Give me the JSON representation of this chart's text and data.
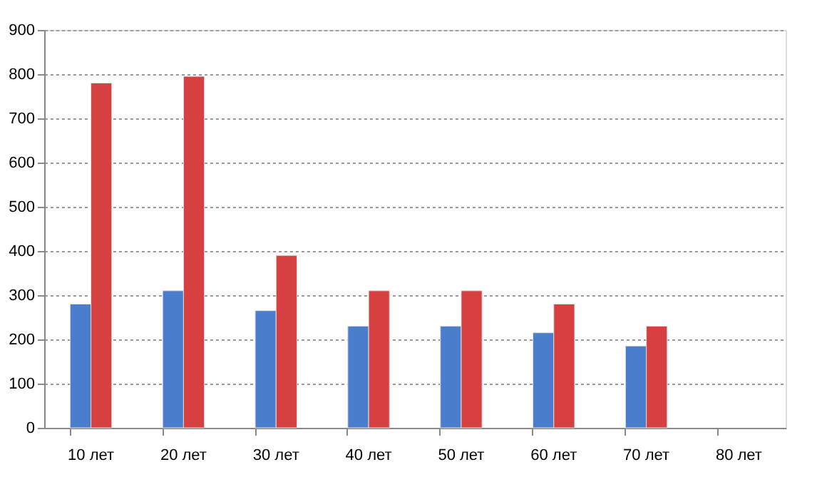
{
  "chart_data": {
    "type": "bar",
    "categories": [
      "10 лет",
      "20 лет",
      "30 лет",
      "40 лет",
      "50 лет",
      "60 лет",
      "70 лет",
      "80 лет"
    ],
    "series": [
      {
        "color": "#4a7dcc",
        "values": [
          280,
          310,
          265,
          230,
          230,
          215,
          185,
          null
        ]
      },
      {
        "color": "#d64040",
        "values": [
          780,
          795,
          390,
          310,
          310,
          280,
          230,
          null
        ]
      }
    ],
    "ylim": [
      0,
      900
    ],
    "yticks": [
      0,
      100,
      200,
      300,
      400,
      500,
      600,
      700,
      800,
      900
    ],
    "grid": "y",
    "legend": false
  }
}
